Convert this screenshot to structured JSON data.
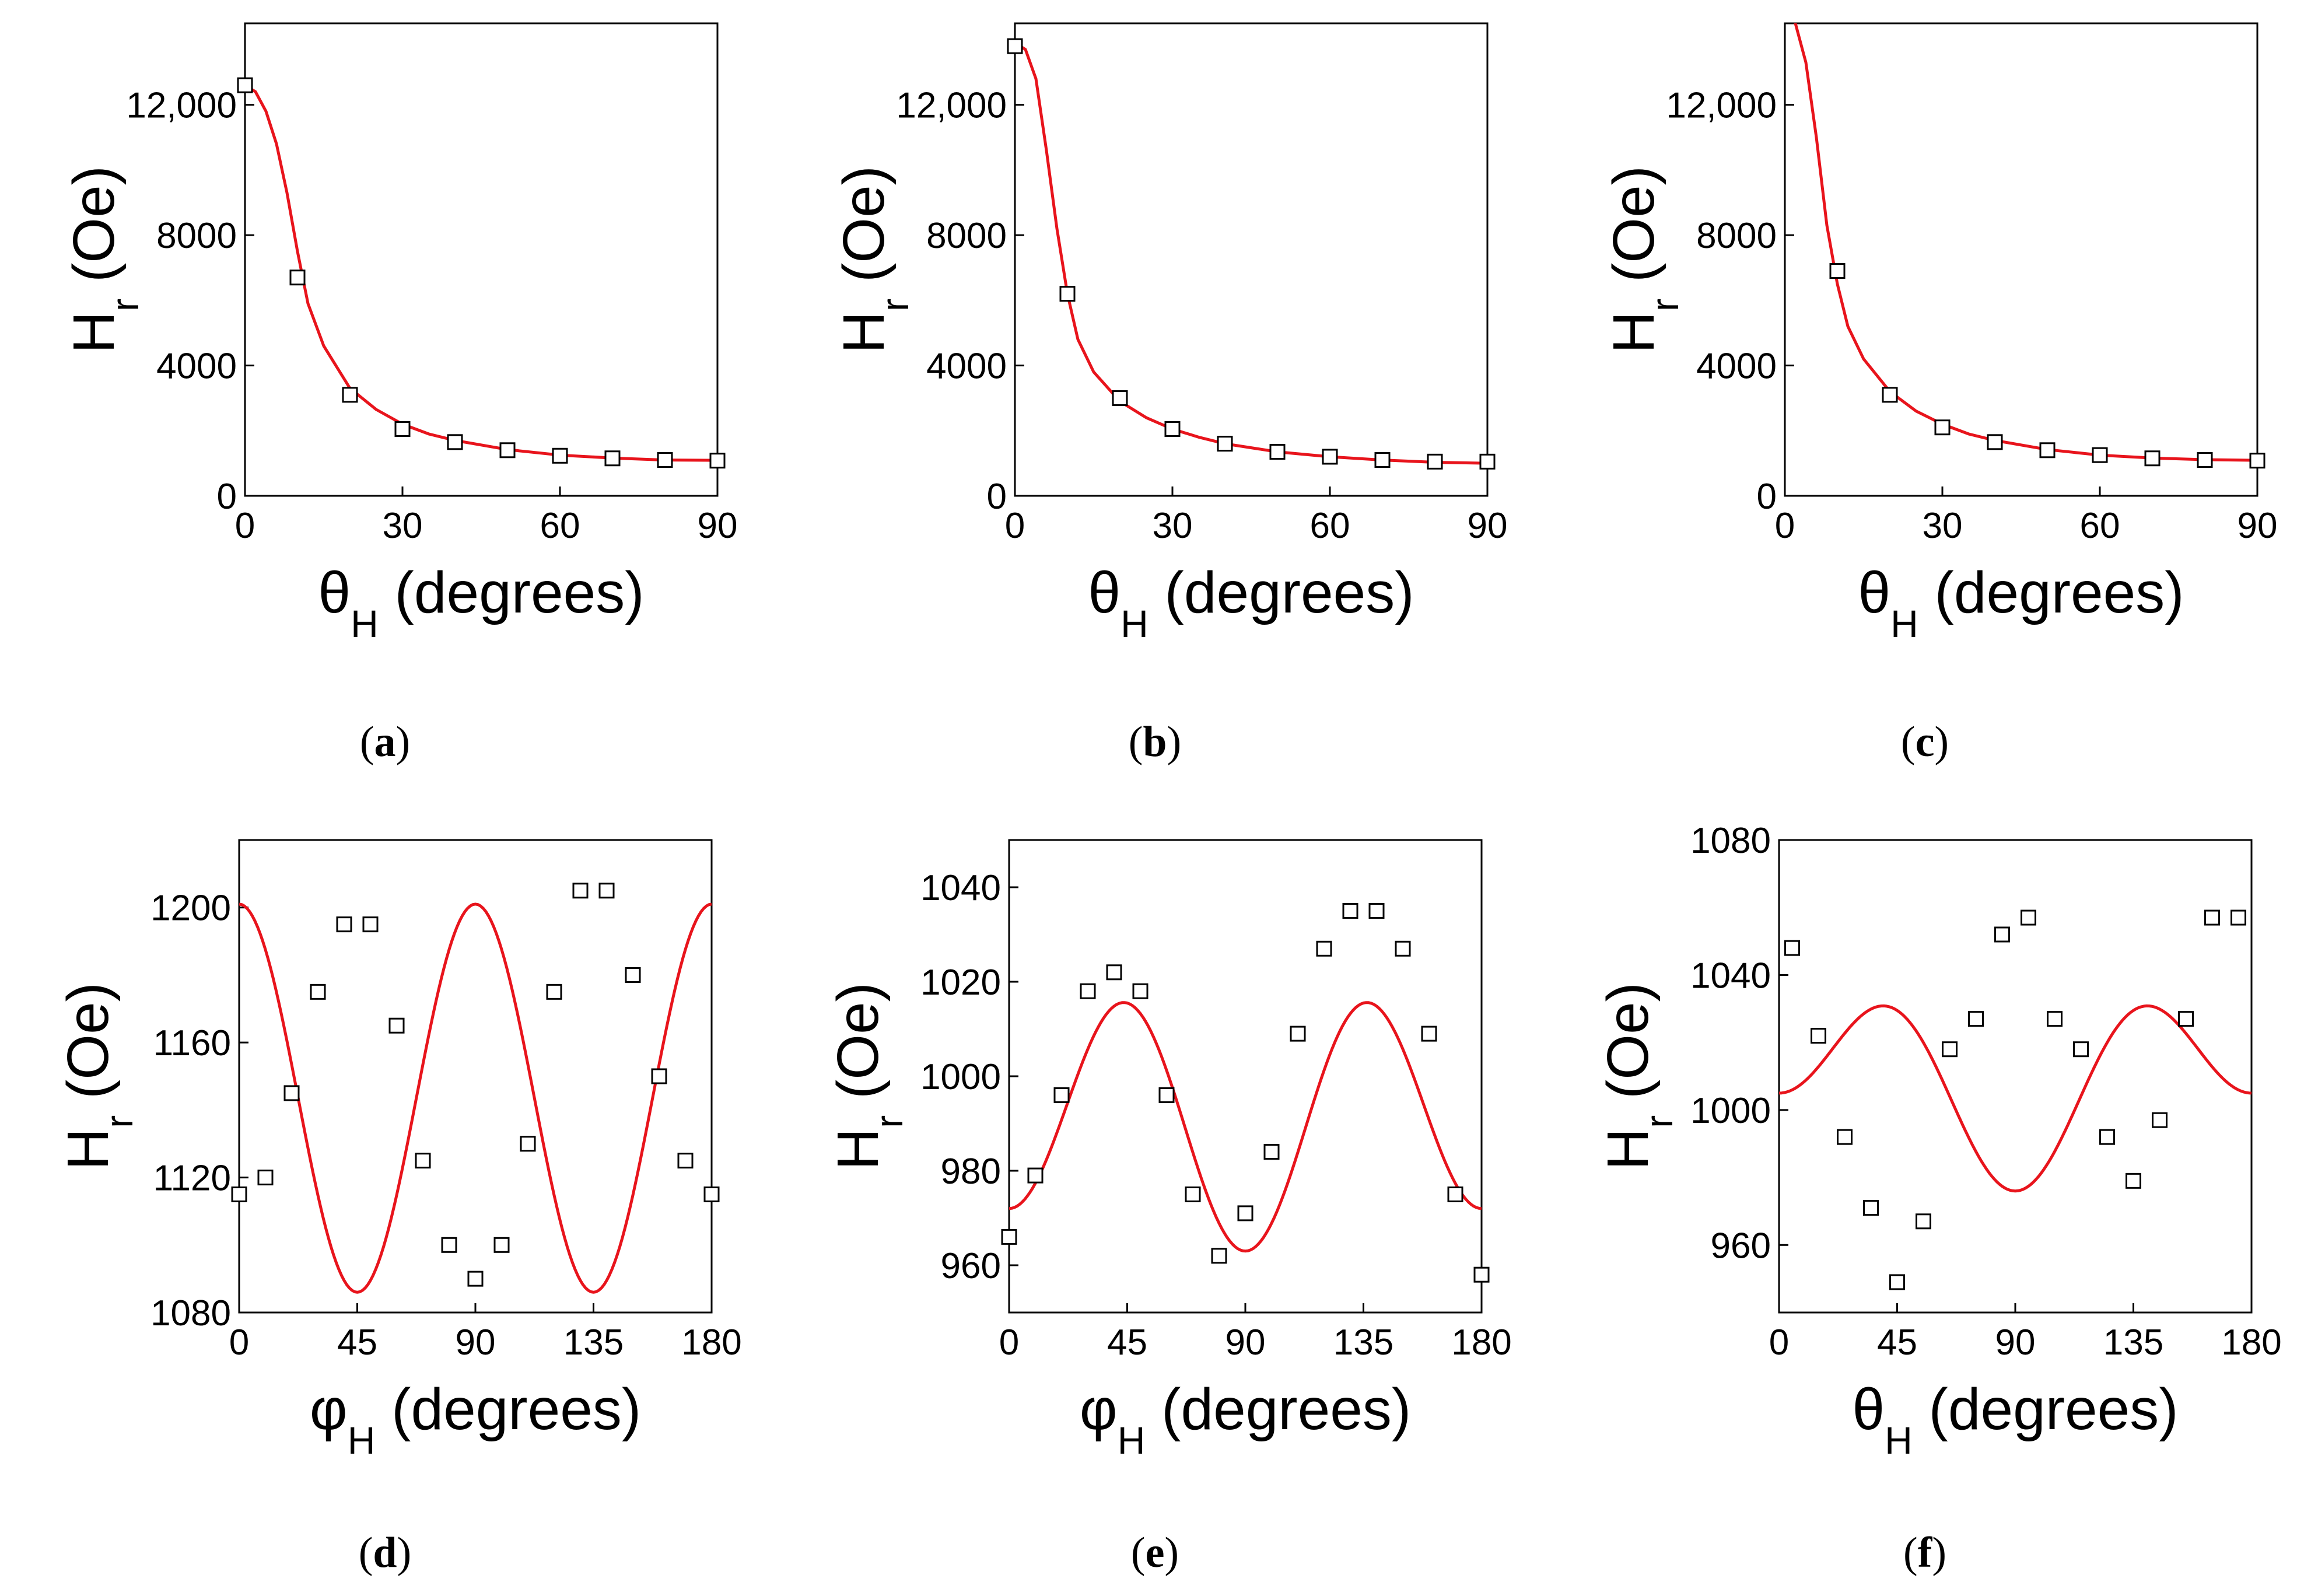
{
  "style": {
    "fit_color": "#e8141c",
    "marker_color": "#000000",
    "background": "#ffffff"
  },
  "chart_data": [
    {
      "id": "a",
      "label": "a",
      "type": "scatter",
      "title": "",
      "xlabel": "θ",
      "xlabel_sub": "H",
      "xlabel_rest": " (degrees)",
      "ylabel": "H",
      "ylabel_sub": "r",
      "ylabel_rest": " (Oe)",
      "xlim": [
        0,
        90
      ],
      "ylim": [
        0,
        14500
      ],
      "xticks": [
        0,
        30,
        60,
        90
      ],
      "xtick_labels": [
        "0",
        "30",
        "60",
        "90"
      ],
      "yticks": [
        0,
        4000,
        8000,
        12000
      ],
      "ytick_labels": [
        "0",
        "4000",
        "8000",
        "12,000"
      ],
      "series": [
        {
          "name": "experiment",
          "kind": "markers",
          "x": [
            0,
            10,
            20,
            30,
            40,
            50,
            60,
            70,
            80,
            90
          ],
          "y": [
            12600,
            6700,
            3100,
            2050,
            1650,
            1400,
            1230,
            1150,
            1100,
            1080
          ]
        },
        {
          "name": "fit",
          "kind": "line",
          "x": [
            0,
            2,
            4,
            6,
            8,
            10,
            12,
            15,
            20,
            25,
            30,
            35,
            40,
            50,
            60,
            70,
            80,
            90
          ],
          "y": [
            12600,
            12400,
            11800,
            10800,
            9300,
            7500,
            5900,
            4600,
            3300,
            2650,
            2200,
            1900,
            1700,
            1420,
            1250,
            1160,
            1100,
            1090
          ]
        }
      ]
    },
    {
      "id": "b",
      "label": "b",
      "type": "scatter",
      "title": "",
      "xlabel": "θ",
      "xlabel_sub": "H",
      "xlabel_rest": " (degrees)",
      "ylabel": "H",
      "ylabel_sub": "r",
      "ylabel_rest": " (Oe)",
      "xlim": [
        0,
        90
      ],
      "ylim": [
        0,
        14500
      ],
      "xticks": [
        0,
        30,
        60,
        90
      ],
      "xtick_labels": [
        "0",
        "30",
        "60",
        "90"
      ],
      "yticks": [
        0,
        4000,
        8000,
        12000
      ],
      "ytick_labels": [
        "0",
        "4000",
        "8000",
        "12,000"
      ],
      "series": [
        {
          "name": "experiment",
          "kind": "markers",
          "x": [
            0,
            10,
            20,
            30,
            40,
            50,
            60,
            70,
            80,
            90
          ],
          "y": [
            13800,
            6200,
            3000,
            2050,
            1600,
            1350,
            1200,
            1100,
            1050,
            1050
          ]
        },
        {
          "name": "fit",
          "kind": "line",
          "x": [
            0,
            2,
            4,
            6,
            8,
            10,
            12,
            15,
            20,
            25,
            30,
            35,
            40,
            50,
            60,
            70,
            80,
            90
          ],
          "y": [
            13900,
            13700,
            12800,
            10600,
            8200,
            6200,
            4800,
            3800,
            2900,
            2400,
            2050,
            1800,
            1600,
            1350,
            1200,
            1100,
            1030,
            1000
          ]
        }
      ]
    },
    {
      "id": "c",
      "label": "c",
      "type": "scatter",
      "title": "",
      "xlabel": "θ",
      "xlabel_sub": "H",
      "xlabel_rest": " (degrees)",
      "ylabel": "H",
      "ylabel_sub": "r",
      "ylabel_rest": " (Oe)",
      "xlim": [
        0,
        90
      ],
      "ylim": [
        0,
        14500
      ],
      "xticks": [
        0,
        30,
        60,
        90
      ],
      "xtick_labels": [
        "0",
        "30",
        "60",
        "90"
      ],
      "yticks": [
        0,
        4000,
        8000,
        12000
      ],
      "ytick_labels": [
        "0",
        "4000",
        "8000",
        "12,000"
      ],
      "series": [
        {
          "name": "experiment",
          "kind": "markers",
          "x": [
            10,
            20,
            30,
            40,
            50,
            60,
            70,
            80,
            90
          ],
          "y": [
            6900,
            3100,
            2100,
            1650,
            1400,
            1250,
            1150,
            1100,
            1080
          ]
        },
        {
          "name": "fit",
          "kind": "line",
          "x": [
            0,
            1,
            2,
            4,
            6,
            8,
            10,
            12,
            15,
            20,
            25,
            30,
            35,
            40,
            50,
            60,
            70,
            80,
            90
          ],
          "y": [
            14900,
            14800,
            14500,
            13300,
            11000,
            8300,
            6500,
            5200,
            4200,
            3200,
            2600,
            2200,
            1900,
            1700,
            1420,
            1250,
            1160,
            1110,
            1090
          ]
        }
      ]
    },
    {
      "id": "d",
      "label": "d",
      "type": "scatter",
      "title": "",
      "xlabel": "φ",
      "xlabel_sub": "H",
      "xlabel_rest": " (degrees)",
      "ylabel": "H",
      "ylabel_sub": "r",
      "ylabel_rest": " (Oe)",
      "xlim": [
        0,
        180
      ],
      "ylim": [
        1080,
        1220
      ],
      "xticks": [
        0,
        45,
        90,
        135,
        180
      ],
      "xtick_labels": [
        "0",
        "45",
        "90",
        "135",
        "180"
      ],
      "yticks": [
        1080,
        1120,
        1160,
        1200
      ],
      "ytick_labels": [
        "1080",
        "1120",
        "1160",
        "1200"
      ],
      "fit": {
        "func": "cos4",
        "mean": 1143.5,
        "amp": 57.5,
        "phase_deg": 45
      },
      "series": [
        {
          "name": "experiment",
          "kind": "markers",
          "x": [
            0,
            10,
            20,
            30,
            40,
            50,
            60,
            70,
            80,
            90,
            100,
            110,
            120,
            130,
            140,
            150,
            160,
            170,
            180
          ],
          "y": [
            1115,
            1120,
            1145,
            1175,
            1195,
            1195,
            1165,
            1125,
            1100,
            1090,
            1100,
            1130,
            1175,
            1205,
            1205,
            1180,
            1150,
            1125,
            1115
          ]
        }
      ]
    },
    {
      "id": "e",
      "label": "e",
      "type": "scatter",
      "title": "",
      "xlabel": "φ",
      "xlabel_sub": "H",
      "xlabel_rest": " (degrees)",
      "ylabel": "H",
      "ylabel_sub": "r",
      "ylabel_rest": " (Oe)",
      "xlim": [
        0,
        180
      ],
      "ylim": [
        950,
        1050
      ],
      "xticks": [
        0,
        45,
        90,
        135,
        180
      ],
      "xtick_labels": [
        "0",
        "45",
        "90",
        "135",
        "180"
      ],
      "yticks": [
        960,
        980,
        1000,
        1020,
        1040
      ],
      "ytick_labels": [
        "960",
        "980",
        "1000",
        "1020",
        "1040"
      ],
      "fit": {
        "func": "cos4_cos2",
        "mean": 991.5,
        "a4": 24.0,
        "a2": 4.5
      },
      "series": [
        {
          "name": "experiment",
          "kind": "markers",
          "x": [
            0,
            10,
            20,
            30,
            40,
            50,
            60,
            70,
            80,
            90,
            100,
            110,
            120,
            130,
            140,
            150,
            160,
            170,
            180
          ],
          "y": [
            966,
            979,
            996,
            1018,
            1022,
            1018,
            996,
            975,
            962,
            971,
            984,
            1009,
            1027,
            1035,
            1035,
            1027,
            1009,
            975,
            958
          ]
        }
      ]
    },
    {
      "id": "f",
      "label": "f",
      "type": "scatter",
      "title": "",
      "xlabel": "θ",
      "xlabel_sub": "H",
      "xlabel_rest": " (degrees)",
      "ylabel": "H",
      "ylabel_sub": "r",
      "ylabel_rest": " (Oe)",
      "xlim": [
        0,
        180
      ],
      "ylim": [
        940,
        1080
      ],
      "xticks": [
        0,
        45,
        90,
        135,
        180
      ],
      "xtick_labels": [
        "0",
        "45",
        "90",
        "135",
        "180"
      ],
      "yticks": [
        960,
        1000,
        1040,
        1080
      ],
      "ytick_labels": [
        "960",
        "1000",
        "1040",
        "1080"
      ],
      "fit": {
        "func": "cos4_cos2",
        "mean": 1010,
        "a4": 19.5,
        "a2": 14.5
      },
      "series": [
        {
          "name": "experiment",
          "kind": "markers",
          "x": [
            5,
            15,
            25,
            35,
            45,
            55,
            65,
            75,
            85,
            95,
            105,
            115,
            125,
            135,
            145,
            155,
            165,
            175
          ],
          "y": [
            1048,
            1022,
            992,
            971,
            949,
            967,
            1018,
            1027,
            1052,
            1057,
            1027,
            1018,
            992,
            979,
            997,
            1027,
            1057,
            1057
          ]
        }
      ]
    }
  ]
}
